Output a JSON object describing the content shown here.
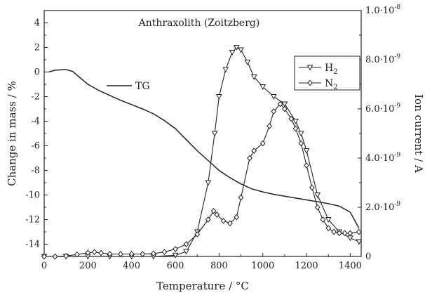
{
  "chart_data": {
    "type": "line",
    "title": "Anthraxolith (Zoitzberg)",
    "xlabel": "Temperature / °C",
    "ylabel_left": "Change in mass / %",
    "ylabel_right": "Ion current / A",
    "xlim": [
      0,
      1450
    ],
    "ylim_left": [
      -15,
      5
    ],
    "ylim_right": [
      0,
      1e-08
    ],
    "x_ticks": [
      "0",
      "200",
      "400",
      "600",
      "800",
      "1000",
      "1200",
      "1400"
    ],
    "y_left_ticks": [
      "4",
      "2",
      "0",
      "-2",
      "-4",
      "-6",
      "-8",
      "-10",
      "-12",
      "-14"
    ],
    "y_left_tick_values": [
      4,
      2,
      0,
      -2,
      -4,
      -6,
      -8,
      -10,
      -12,
      -14
    ],
    "y_right_ticks": [
      "0",
      "2.0·10",
      "4.0·10",
      "6.0·10",
      "8.0·10",
      "1.0·10"
    ],
    "y_right_tick_exponents": [
      "",
      "-9",
      "-9",
      "-9",
      "-9",
      "-8"
    ],
    "y_right_tick_values": [
      0,
      2e-09,
      4e-09,
      6e-09,
      8e-09,
      1e-08
    ],
    "grid": false,
    "legend_position": "top-right",
    "annotation": "TG",
    "series": [
      {
        "name": "TG",
        "axis": "left",
        "marker": "none",
        "points": [
          [
            20,
            0.0
          ],
          [
            50,
            0.15
          ],
          [
            100,
            0.2
          ],
          [
            130,
            0.05
          ],
          [
            160,
            -0.4
          ],
          [
            200,
            -1.0
          ],
          [
            250,
            -1.5
          ],
          [
            300,
            -1.9
          ],
          [
            350,
            -2.3
          ],
          [
            400,
            -2.65
          ],
          [
            450,
            -3.0
          ],
          [
            500,
            -3.4
          ],
          [
            550,
            -3.95
          ],
          [
            600,
            -4.6
          ],
          [
            650,
            -5.5
          ],
          [
            700,
            -6.4
          ],
          [
            750,
            -7.2
          ],
          [
            800,
            -8.0
          ],
          [
            850,
            -8.6
          ],
          [
            900,
            -9.1
          ],
          [
            950,
            -9.5
          ],
          [
            1000,
            -9.75
          ],
          [
            1050,
            -9.95
          ],
          [
            1100,
            -10.1
          ],
          [
            1150,
            -10.25
          ],
          [
            1200,
            -10.4
          ],
          [
            1250,
            -10.55
          ],
          [
            1300,
            -10.7
          ],
          [
            1350,
            -10.9
          ],
          [
            1400,
            -11.4
          ],
          [
            1440,
            -12.7
          ]
        ]
      },
      {
        "name": "H2",
        "axis": "right",
        "marker": "triangle-down",
        "points": [
          [
            0,
            0.0
          ],
          [
            100,
            0.0
          ],
          [
            200,
            0.0
          ],
          [
            300,
            0.0
          ],
          [
            400,
            0.0
          ],
          [
            500,
            0.0
          ],
          [
            600,
            5e-11
          ],
          [
            650,
            2e-10
          ],
          [
            700,
            1e-09
          ],
          [
            750,
            3e-09
          ],
          [
            780,
            5e-09
          ],
          [
            800,
            6.5e-09
          ],
          [
            830,
            7.6e-09
          ],
          [
            860,
            8.3e-09
          ],
          [
            880,
            8.5e-09
          ],
          [
            900,
            8.4e-09
          ],
          [
            930,
            7.9e-09
          ],
          [
            960,
            7.3e-09
          ],
          [
            1000,
            6.9e-09
          ],
          [
            1050,
            6.5e-09
          ],
          [
            1100,
            6.2e-09
          ],
          [
            1150,
            5.5e-09
          ],
          [
            1175,
            5e-09
          ],
          [
            1200,
            4.3e-09
          ],
          [
            1250,
            2.5e-09
          ],
          [
            1300,
            1.5e-09
          ],
          [
            1350,
            1e-09
          ],
          [
            1400,
            7.5e-10
          ],
          [
            1440,
            6e-10
          ]
        ]
      },
      {
        "name": "N2",
        "axis": "right",
        "marker": "diamond",
        "points": [
          [
            0,
            0.0
          ],
          [
            50,
            0.0
          ],
          [
            100,
            2e-11
          ],
          [
            150,
            8e-11
          ],
          [
            200,
            1.5e-10
          ],
          [
            230,
            1.8e-10
          ],
          [
            260,
            1.4e-10
          ],
          [
            300,
            1e-10
          ],
          [
            350,
            1e-10
          ],
          [
            400,
            1e-10
          ],
          [
            450,
            1e-10
          ],
          [
            500,
            1.2e-10
          ],
          [
            550,
            1.8e-10
          ],
          [
            600,
            3e-10
          ],
          [
            650,
            5e-10
          ],
          [
            700,
            9e-10
          ],
          [
            750,
            1.5e-09
          ],
          [
            775,
            1.85e-09
          ],
          [
            790,
            1.7e-09
          ],
          [
            820,
            1.45e-09
          ],
          [
            850,
            1.35e-09
          ],
          [
            880,
            1.6e-09
          ],
          [
            900,
            2.4e-09
          ],
          [
            940,
            4e-09
          ],
          [
            960,
            4.3e-09
          ],
          [
            1000,
            4.6e-09
          ],
          [
            1030,
            5.3e-09
          ],
          [
            1050,
            5.9e-09
          ],
          [
            1080,
            6.2e-09
          ],
          [
            1100,
            6e-09
          ],
          [
            1130,
            5.6e-09
          ],
          [
            1150,
            5.2e-09
          ],
          [
            1175,
            4.6e-09
          ],
          [
            1200,
            3.7e-09
          ],
          [
            1225,
            2.8e-09
          ],
          [
            1250,
            2e-09
          ],
          [
            1275,
            1.5e-09
          ],
          [
            1300,
            1.15e-09
          ],
          [
            1325,
            1e-09
          ],
          [
            1350,
            9.5e-10
          ],
          [
            1375,
            9.5e-10
          ],
          [
            1400,
            9.5e-10
          ],
          [
            1440,
            1e-09
          ]
        ]
      }
    ]
  }
}
